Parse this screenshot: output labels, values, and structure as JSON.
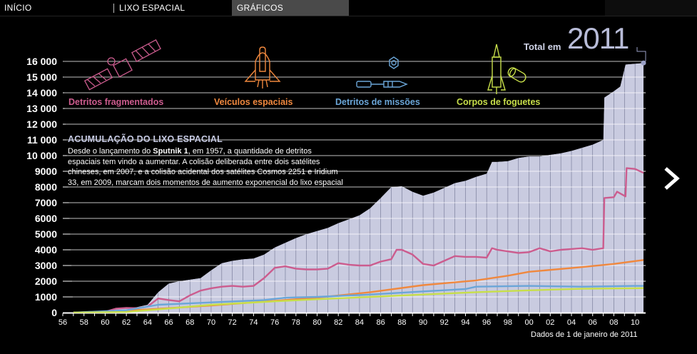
{
  "nav": {
    "tabs": [
      {
        "label": "INÍCIO"
      },
      {
        "label": "LIXO ESPACIAL"
      },
      {
        "label": "GRÁFICOS",
        "active": true
      }
    ]
  },
  "header": {
    "total_label": "Total em",
    "total_year": "2011"
  },
  "intro": {
    "title": "ACUMULAÇÃO DO LIXO ESPACIAL",
    "text_before": "Desde o lançamento do ",
    "text_bold": "Sputnik 1",
    "text_after": ", em 1957, a quantidade de detritos espaciais tem vindo a aumentar. A colisão deliberada entre dois satélites chineses, em 2007, e a colisão acidental dos satélites Cosmos 2251 e Iridium 33, em 2009, marcam dois momentos de aumento exponencial do lixo espacial"
  },
  "footer_note": "Dados de 1 de janeiro de 2011",
  "chart_data": {
    "type": "area",
    "xlabel": "",
    "ylabel": "",
    "ylim": [
      0,
      16000
    ],
    "xlim": [
      1956,
      2011
    ],
    "y_ticks": [
      0,
      1000,
      2000,
      3000,
      4000,
      5000,
      6000,
      7000,
      8000,
      9000,
      10000,
      11000,
      12000,
      13000,
      14000,
      15000,
      16000
    ],
    "y_tick_labels": [
      "0",
      "1000",
      "2000",
      "3000",
      "4000",
      "5000",
      "6000",
      "7000",
      "8000",
      "9000",
      "10 000",
      "11 000",
      "12 000",
      "13 000",
      "14 000",
      "15 000",
      "16 000"
    ],
    "x_ticks": [
      1956,
      1958,
      1960,
      1962,
      1964,
      1966,
      1968,
      1970,
      1972,
      1974,
      1976,
      1978,
      1980,
      1982,
      1984,
      1986,
      1988,
      1990,
      1992,
      1994,
      1996,
      1998,
      2000,
      2002,
      2004,
      2006,
      2008,
      2010
    ],
    "x_tick_labels": [
      "56",
      "58",
      "60",
      "62",
      "64",
      "66",
      "68",
      "70",
      "72",
      "74",
      "76",
      "78",
      "80",
      "82",
      "84",
      "86",
      "88",
      "90",
      "92",
      "94",
      "96",
      "98",
      "00",
      "02",
      "04",
      "06",
      "08",
      "10"
    ],
    "legend_position": "top",
    "total": {
      "name": "Total",
      "color": "#c9cbe0",
      "points": [
        [
          1957,
          0
        ],
        [
          1960,
          60
        ],
        [
          1961,
          250
        ],
        [
          1962,
          300
        ],
        [
          1963,
          350
        ],
        [
          1964,
          500
        ],
        [
          1965,
          1300
        ],
        [
          1966,
          1850
        ],
        [
          1967,
          2000
        ],
        [
          1968,
          2100
        ],
        [
          1969,
          2200
        ],
        [
          1970,
          2700
        ],
        [
          1971,
          3150
        ],
        [
          1972,
          3300
        ],
        [
          1973,
          3400
        ],
        [
          1974,
          3450
        ],
        [
          1975,
          3700
        ],
        [
          1976,
          4150
        ],
        [
          1977,
          4450
        ],
        [
          1978,
          4750
        ],
        [
          1979,
          5000
        ],
        [
          1980,
          5200
        ],
        [
          1981,
          5400
        ],
        [
          1982,
          5700
        ],
        [
          1983,
          5950
        ],
        [
          1984,
          6200
        ],
        [
          1985,
          6650
        ],
        [
          1986,
          7300
        ],
        [
          1987,
          8000
        ],
        [
          1988,
          8050
        ],
        [
          1989,
          7700
        ],
        [
          1990,
          7450
        ],
        [
          1991,
          7650
        ],
        [
          1992,
          7950
        ],
        [
          1993,
          8250
        ],
        [
          1994,
          8400
        ],
        [
          1995,
          8650
        ],
        [
          1996,
          8850
        ],
        [
          1996.5,
          9600
        ],
        [
          1997,
          9600
        ],
        [
          1998,
          9650
        ],
        [
          1999,
          9850
        ],
        [
          2000,
          9950
        ],
        [
          2001,
          9950
        ],
        [
          2002,
          10050
        ],
        [
          2003,
          10150
        ],
        [
          2004,
          10300
        ],
        [
          2005,
          10500
        ],
        [
          2006,
          10700
        ],
        [
          2007,
          11000
        ],
        [
          2007.1,
          13700
        ],
        [
          2008,
          14100
        ],
        [
          2008.6,
          14400
        ],
        [
          2009.1,
          15800
        ],
        [
          2010,
          15850
        ],
        [
          2010.8,
          15900
        ]
      ]
    },
    "series": [
      {
        "name": "Detritos fragmentados",
        "color": "#cc5c8e",
        "points": [
          [
            1957,
            0
          ],
          [
            1960,
            50
          ],
          [
            1961,
            250
          ],
          [
            1962,
            300
          ],
          [
            1963,
            280
          ],
          [
            1964,
            380
          ],
          [
            1965,
            900
          ],
          [
            1966,
            800
          ],
          [
            1967,
            720
          ],
          [
            1968,
            1100
          ],
          [
            1969,
            1400
          ],
          [
            1970,
            1550
          ],
          [
            1971,
            1650
          ],
          [
            1972,
            1700
          ],
          [
            1973,
            1650
          ],
          [
            1974,
            1700
          ],
          [
            1975,
            2200
          ],
          [
            1976,
            2850
          ],
          [
            1977,
            2950
          ],
          [
            1978,
            2800
          ],
          [
            1979,
            2750
          ],
          [
            1980,
            2750
          ],
          [
            1981,
            2800
          ],
          [
            1982,
            3150
          ],
          [
            1983,
            3050
          ],
          [
            1984,
            3000
          ],
          [
            1985,
            3000
          ],
          [
            1986,
            3250
          ],
          [
            1987,
            3400
          ],
          [
            1987.5,
            4000
          ],
          [
            1988,
            4000
          ],
          [
            1989,
            3700
          ],
          [
            1990,
            3100
          ],
          [
            1991,
            3000
          ],
          [
            1992,
            3300
          ],
          [
            1993,
            3600
          ],
          [
            1994,
            3550
          ],
          [
            1995,
            3550
          ],
          [
            1996,
            3500
          ],
          [
            1996.5,
            4100
          ],
          [
            1997,
            4000
          ],
          [
            1998,
            3900
          ],
          [
            1999,
            3800
          ],
          [
            2000,
            3850
          ],
          [
            2001,
            4100
          ],
          [
            2002,
            3900
          ],
          [
            2003,
            4000
          ],
          [
            2004,
            4050
          ],
          [
            2005,
            4100
          ],
          [
            2006,
            4000
          ],
          [
            2007,
            4100
          ],
          [
            2007.1,
            7300
          ],
          [
            2008,
            7350
          ],
          [
            2008.3,
            7700
          ],
          [
            2009.1,
            7400
          ],
          [
            2009.2,
            9200
          ],
          [
            2010,
            9150
          ],
          [
            2010.8,
            8900
          ]
        ]
      },
      {
        "name": "Veículos espaciais",
        "color": "#f0883e",
        "points": [
          [
            1957,
            0
          ],
          [
            1960,
            60
          ],
          [
            1964,
            200
          ],
          [
            1970,
            450
          ],
          [
            1975,
            700
          ],
          [
            1980,
            950
          ],
          [
            1985,
            1300
          ],
          [
            1990,
            1750
          ],
          [
            1995,
            2050
          ],
          [
            1998,
            2350
          ],
          [
            2000,
            2600
          ],
          [
            2005,
            2900
          ],
          [
            2008,
            3100
          ],
          [
            2010.8,
            3350
          ]
        ]
      },
      {
        "name": "Detritos de missões",
        "color": "#6ba6d8",
        "points": [
          [
            1957,
            0
          ],
          [
            1962,
            150
          ],
          [
            1965,
            500
          ],
          [
            1970,
            650
          ],
          [
            1975,
            800
          ],
          [
            1977,
            950
          ],
          [
            1980,
            1000
          ],
          [
            1985,
            1150
          ],
          [
            1990,
            1350
          ],
          [
            1994,
            1500
          ],
          [
            1995,
            1650
          ],
          [
            2000,
            1700
          ],
          [
            2005,
            1650
          ],
          [
            2010,
            1700
          ],
          [
            2010.8,
            1700
          ]
        ]
      },
      {
        "name": "Corpos de foguetes",
        "color": "#c8df4a",
        "points": [
          [
            1957,
            0
          ],
          [
            1962,
            40
          ],
          [
            1965,
            200
          ],
          [
            1970,
            500
          ],
          [
            1975,
            680
          ],
          [
            1980,
            850
          ],
          [
            1985,
            1000
          ],
          [
            1990,
            1150
          ],
          [
            1995,
            1300
          ],
          [
            2000,
            1420
          ],
          [
            2005,
            1520
          ],
          [
            2010,
            1550
          ],
          [
            2010.8,
            1560
          ]
        ]
      }
    ]
  }
}
